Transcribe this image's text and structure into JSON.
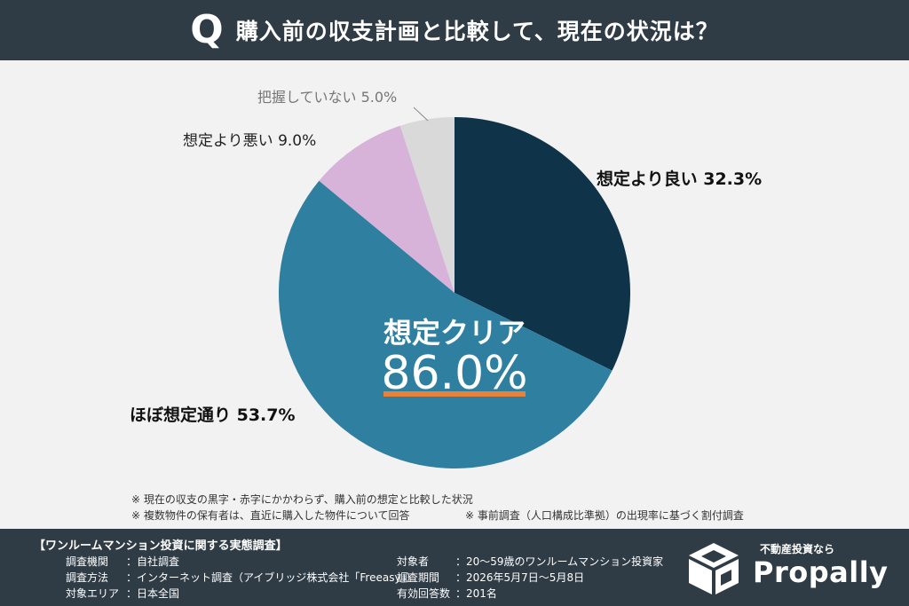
{
  "header": {
    "q_mark": "Q",
    "title": "購入前の収支計画と比較して、現在の状況は？"
  },
  "chart_data": {
    "type": "pie",
    "start_angle": "12 o'clock",
    "direction": "clockwise",
    "slices": [
      {
        "label": "想定より良い",
        "value": 32.3,
        "display": "想定より良い 32.3%",
        "color": "#0f3349"
      },
      {
        "label": "ほぼ想定通り",
        "value": 53.7,
        "display": "ほぼ想定通り 53.7%",
        "color": "#2f7fa0"
      },
      {
        "label": "想定より悪い",
        "value": 9.0,
        "display": "想定より悪い 9.0%",
        "color": "#d7b2d9"
      },
      {
        "label": "把握していない",
        "value": 5.0,
        "display": "把握していない 5.0%",
        "color": "#d9d9d9"
      }
    ],
    "center_label": "想定クリア",
    "center_value": "86.0%",
    "center_underline_color": "#e8813a"
  },
  "notes": [
    "※ 現在の収支の黒字・赤字にかかわらず、購入前の想定と比較した状況",
    "※ 複数物件の保有者は、直近に購入した物件について回答",
    "※ 事前調査（人口構成比準拠）の出現率に基づく割付調査"
  ],
  "footer": {
    "survey_title": "【ワンルームマンション投資に関する実態調査】",
    "left": [
      {
        "key": "調査機関",
        "value": "：自社調査"
      },
      {
        "key": "調査方法",
        "value": "：インターネット調査（アイブリッジ株式会社「Freeasy」）"
      },
      {
        "key": "対象エリア",
        "value": "：日本全国"
      }
    ],
    "right": [
      {
        "key": "対象者",
        "value": "：20～59歳のワンルームマンション投資家"
      },
      {
        "key": "調査期間",
        "value": "：2026年5月7日～5月8日"
      },
      {
        "key": "有効回答数",
        "value": "：201名"
      }
    ],
    "logo_tagline": "不動産投資なら",
    "logo_name": "Propally"
  }
}
